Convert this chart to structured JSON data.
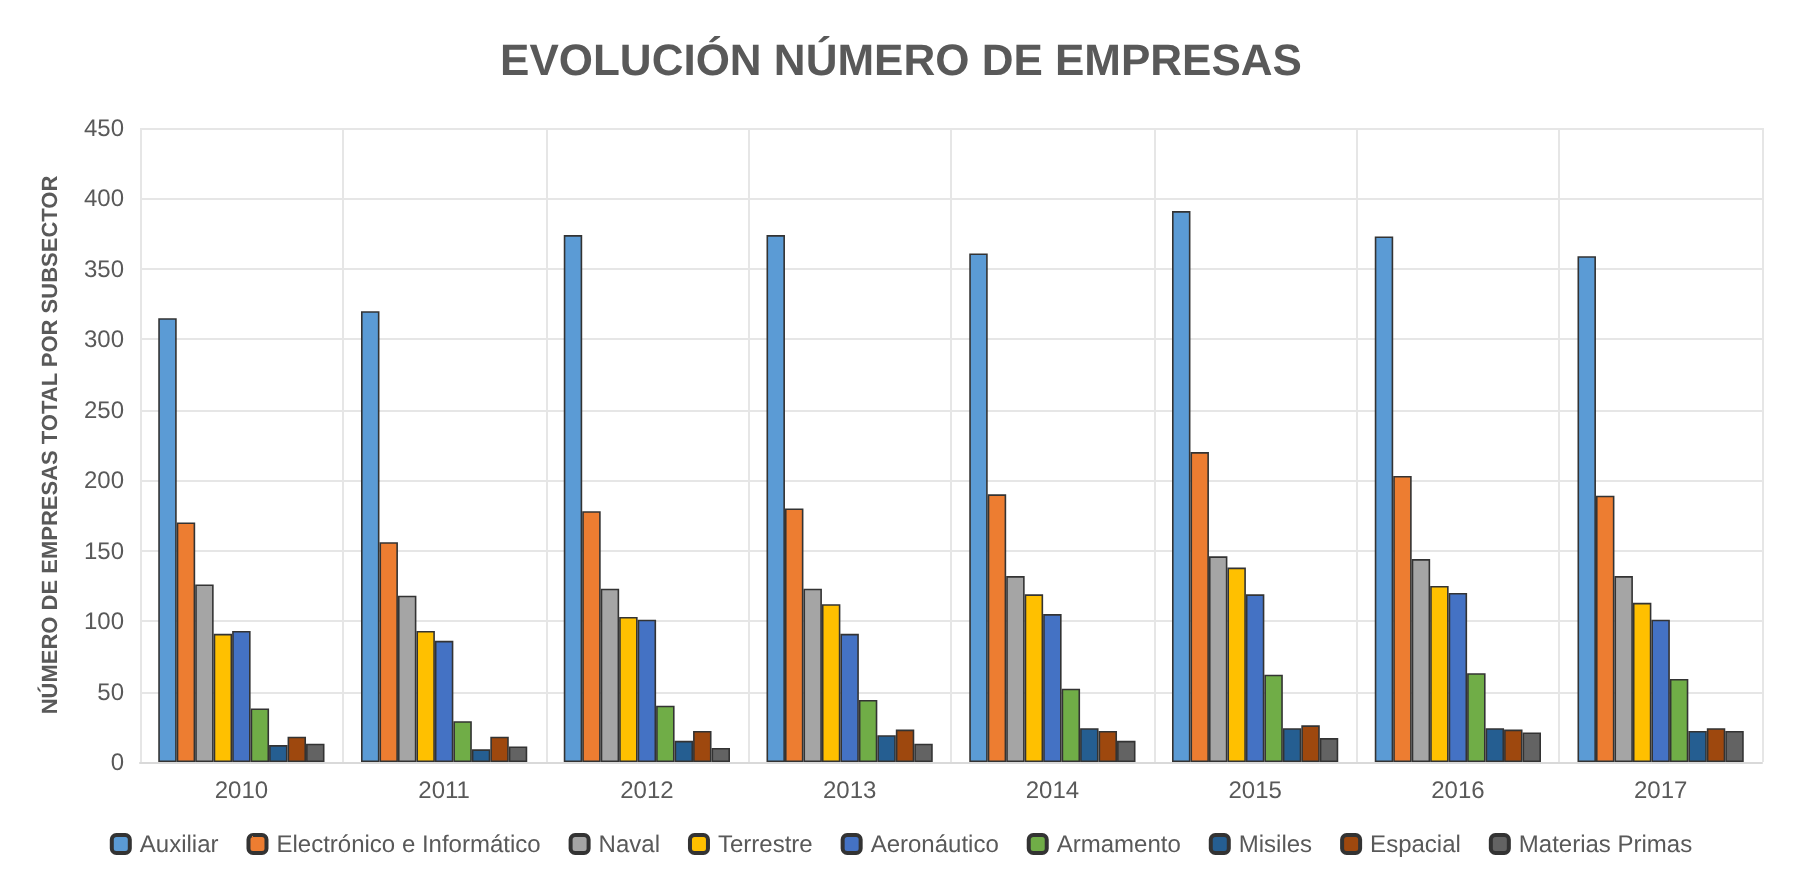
{
  "chart_data": {
    "type": "bar",
    "title": "EVOLUCIÓN NÚMERO DE EMPRESAS",
    "ylabel": "NÚMERO DE EMPRESAS TOTAL POR SUBSECTOR",
    "categories": [
      "2010",
      "2011",
      "2012",
      "2013",
      "2014",
      "2015",
      "2016",
      "2017"
    ],
    "series": [
      {
        "name": "Auxiliar",
        "color": "#5b9bd5",
        "values": [
          315,
          320,
          374,
          374,
          361,
          391,
          373,
          359
        ]
      },
      {
        "name": "Electrónico e Informático",
        "color": "#ed7d31",
        "values": [
          170,
          156,
          178,
          180,
          190,
          220,
          203,
          189
        ]
      },
      {
        "name": "Naval",
        "color": "#a5a5a5",
        "values": [
          126,
          118,
          123,
          123,
          132,
          146,
          144,
          132
        ]
      },
      {
        "name": "Terrestre",
        "color": "#ffc000",
        "values": [
          91,
          93,
          103,
          112,
          119,
          138,
          125,
          113
        ]
      },
      {
        "name": "Aeronáutico",
        "color": "#4472c4",
        "values": [
          93,
          86,
          101,
          91,
          105,
          119,
          120,
          101
        ]
      },
      {
        "name": "Armamento",
        "color": "#70ad47",
        "values": [
          38,
          29,
          40,
          44,
          52,
          62,
          63,
          59
        ]
      },
      {
        "name": "Misiles",
        "color": "#255e91",
        "values": [
          12,
          9,
          15,
          19,
          24,
          24,
          24,
          22
        ]
      },
      {
        "name": "Espacial",
        "color": "#9e480e",
        "values": [
          18,
          18,
          22,
          23,
          22,
          26,
          23,
          24
        ]
      },
      {
        "name": "Materias Primas",
        "color": "#636363",
        "values": [
          13,
          11,
          10,
          13,
          15,
          17,
          21,
          22
        ]
      }
    ],
    "ylim": [
      0,
      450
    ],
    "yticks": [
      0,
      50,
      100,
      150,
      200,
      250,
      300,
      350,
      400,
      450
    ],
    "grid": true,
    "legend": "bottom"
  }
}
